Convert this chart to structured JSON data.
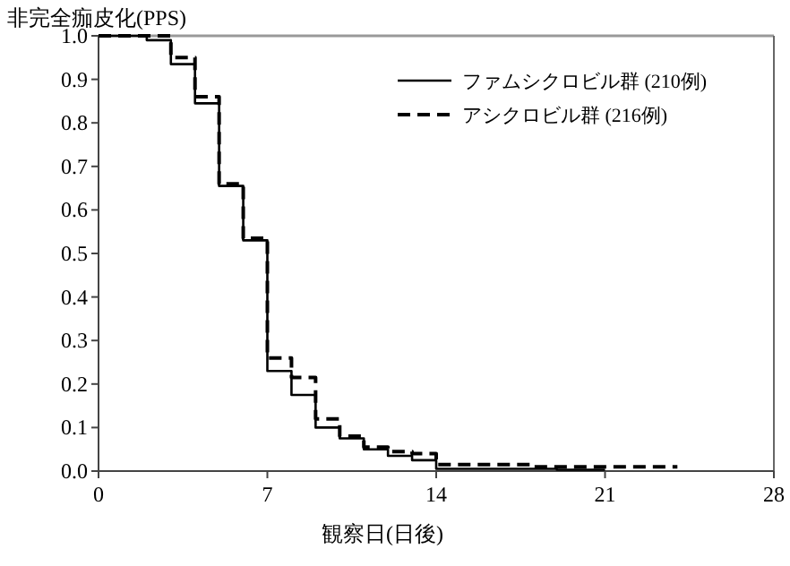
{
  "chart_data": {
    "type": "step",
    "ylabel": "非完全痂皮化(PPS)",
    "xlabel": "観察日(日後)",
    "xlim": [
      0,
      28
    ],
    "xticks": [
      0,
      7,
      14,
      21,
      28
    ],
    "ylim": [
      0,
      1
    ],
    "yticks": [
      {
        "value": 0,
        "label": "0.0"
      },
      {
        "value": 0.1,
        "label": "0.1"
      },
      {
        "value": 0.2,
        "label": "0.2"
      },
      {
        "value": 0.3,
        "label": "0.3"
      },
      {
        "value": 0.4,
        "label": "0.4"
      },
      {
        "value": 0.5,
        "label": "0.5"
      },
      {
        "value": 0.6,
        "label": "0.6"
      },
      {
        "value": 0.7,
        "label": "0.7"
      },
      {
        "value": 0.8,
        "label": "0.8"
      },
      {
        "value": 0.9,
        "label": "0.9"
      },
      {
        "value": 1,
        "label": "1.0"
      }
    ],
    "legend": "top right",
    "grid": false,
    "series": [
      {
        "name": "ファムシクロビル群 (210例)",
        "color": "#000000",
        "line_style": "solid",
        "x": [
          0,
          2,
          3,
          4,
          5,
          6,
          7,
          8,
          9,
          10,
          11,
          12,
          13,
          14,
          19,
          21
        ],
        "values": [
          1.0,
          0.99,
          0.935,
          0.845,
          0.655,
          0.53,
          0.23,
          0.175,
          0.1,
          0.075,
          0.05,
          0.035,
          0.025,
          0.005,
          0.003,
          0.003
        ]
      },
      {
        "name": "アシクロビル群 (216例)",
        "color": "#000000",
        "line_style": "dashed",
        "x": [
          0,
          3,
          4,
          5,
          6,
          7,
          8,
          9,
          10,
          11,
          12,
          13,
          14,
          18,
          24
        ],
        "values": [
          1.0,
          0.95,
          0.86,
          0.66,
          0.535,
          0.26,
          0.215,
          0.12,
          0.08,
          0.055,
          0.045,
          0.04,
          0.015,
          0.01,
          0.01
        ]
      }
    ]
  }
}
